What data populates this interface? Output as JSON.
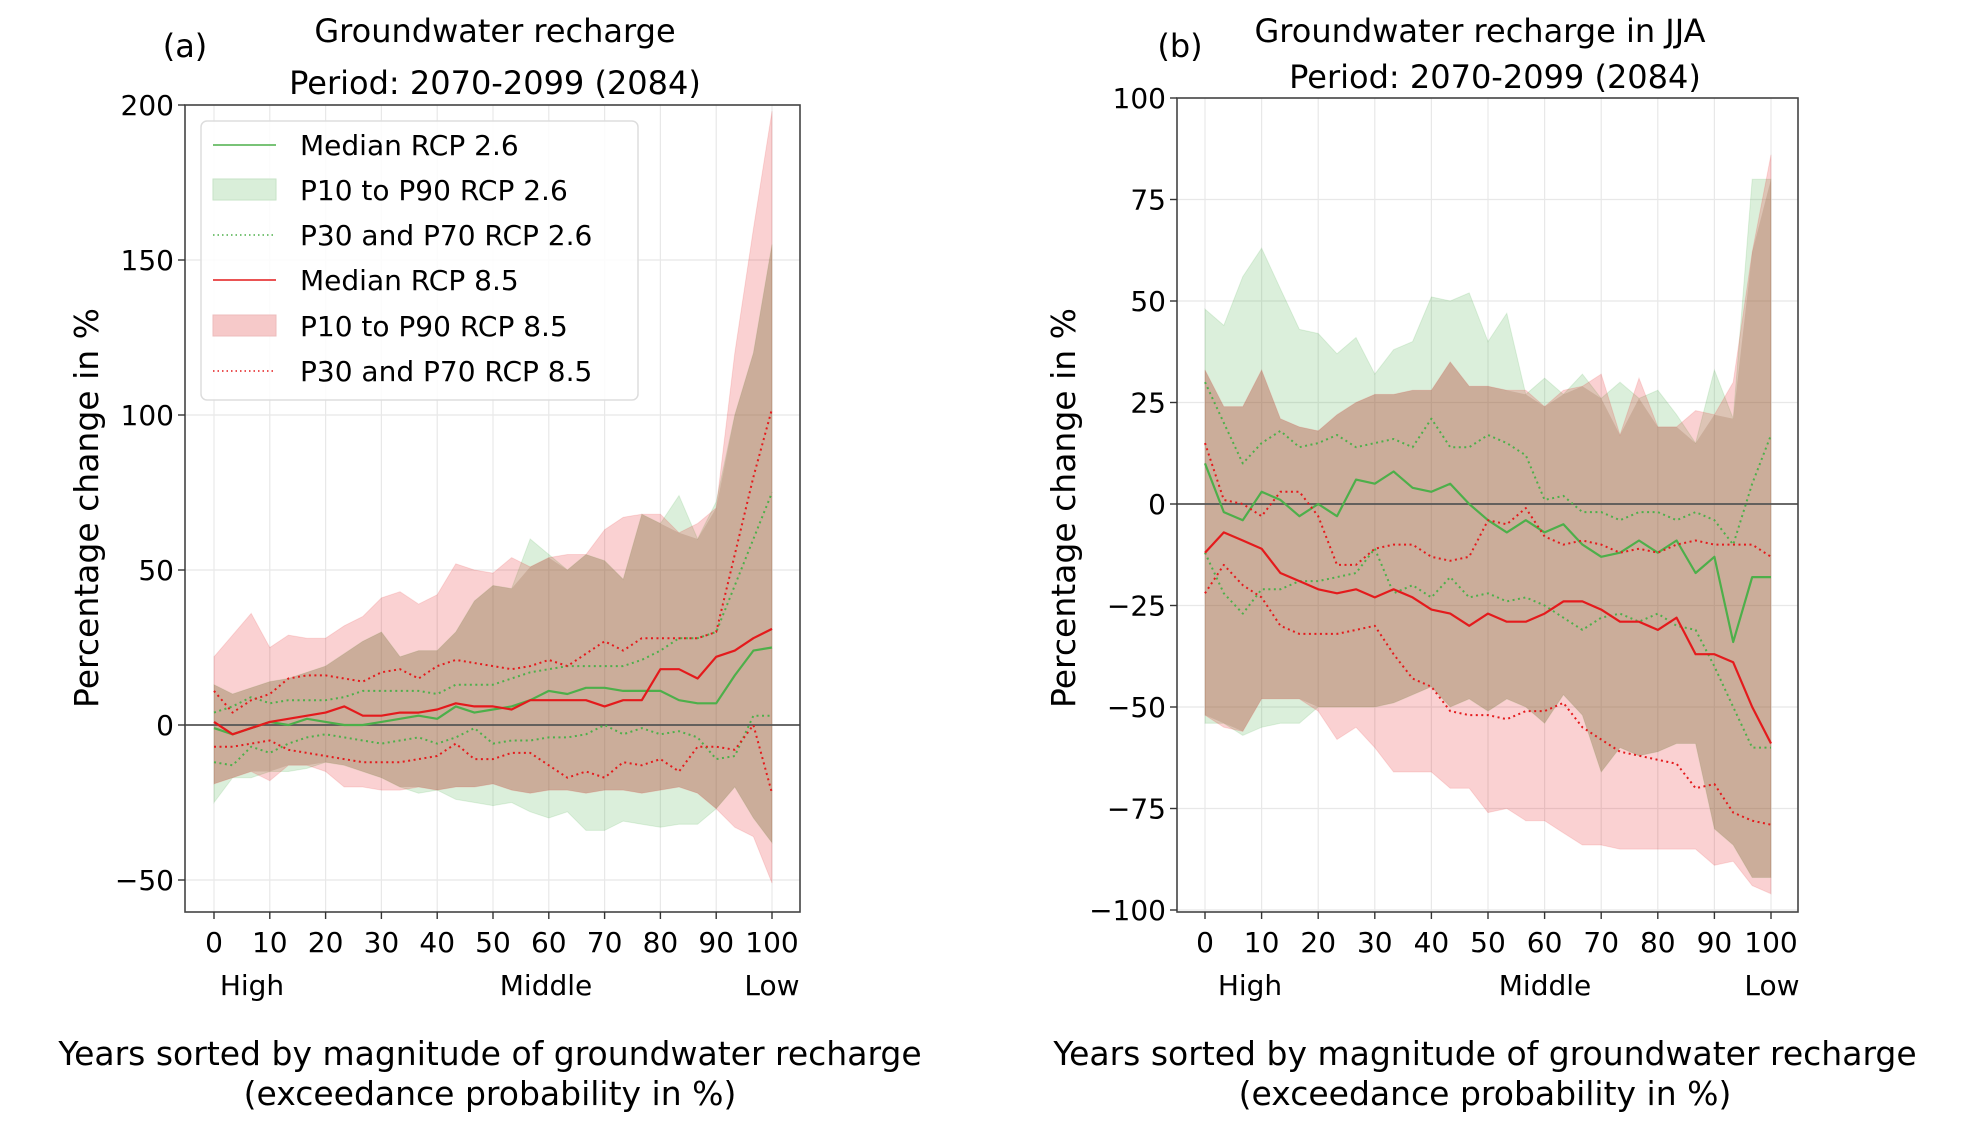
{
  "colors": {
    "rcp26_line": "#4daf4a",
    "rcp26_fill": "#d9eed9",
    "rcp85_line": "#e41a1c",
    "rcp85_fill": "#f6c9c9",
    "overlap_fill": "#d8c0b0",
    "zero_line": "#555555",
    "grid": "#e8e8e8"
  },
  "chart_data": [
    {
      "type": "area",
      "panel_label": "(a)",
      "title": "Groundwater recharge",
      "subtitle": "Period: 2070-2099 (2084)",
      "xlabel": "Years sorted by magnitude of groundwater recharge\n(exceedance probability in %)",
      "xlabel_line1": "Years sorted by magnitude of groundwater recharge",
      "xlabel_line2": "(exceedance probability in %)",
      "ylabel": "Percentage change in %",
      "xlim": [
        0,
        100
      ],
      "ylim": [
        -60,
        200
      ],
      "xticks": [
        0,
        10,
        20,
        30,
        40,
        50,
        60,
        70,
        80,
        90,
        100
      ],
      "yticks": [
        -50,
        0,
        50,
        100,
        150,
        200
      ],
      "ytick_labels": [
        "−50",
        "0",
        "50",
        "100",
        "150",
        "200"
      ],
      "category_labels": {
        "high": "High",
        "middle": "Middle",
        "low": "Low"
      },
      "grid": true,
      "legend": {
        "position": "top-left",
        "entries": [
          "Median RCP 2.6",
          "P10 to P90 RCP 2.6",
          "P30 and P70 RCP 2.6",
          "Median RCP 8.5",
          "P10 to P90 RCP 8.5",
          "P30 and P70 RCP 8.5"
        ]
      },
      "x": [
        0,
        3.33,
        6.67,
        10,
        13.33,
        16.67,
        20,
        23.33,
        26.67,
        30,
        33.33,
        36.67,
        40,
        43.33,
        46.67,
        50,
        53.33,
        56.67,
        60,
        63.33,
        66.67,
        70,
        73.33,
        76.67,
        80,
        83.33,
        86.67,
        90,
        93.33,
        96.67,
        100
      ],
      "series": [
        {
          "name": "Median RCP 2.6",
          "style": "line",
          "color": "rcp26",
          "values": [
            -1,
            -3,
            -1,
            1,
            0,
            2,
            1,
            0,
            0,
            1,
            2,
            3,
            2,
            6,
            4,
            5,
            6,
            8,
            11,
            10,
            12,
            12,
            11,
            11,
            11,
            8,
            7,
            7,
            16,
            24,
            25
          ]
        },
        {
          "name": "P10 RCP 2.6",
          "style": "band-low",
          "color": "rcp26",
          "values": [
            -25,
            -17,
            -17,
            -15,
            -15,
            -14,
            -12,
            -13,
            -15,
            -17,
            -20,
            -22,
            -21,
            -24,
            -25,
            -26,
            -25,
            -28,
            -30,
            -28,
            -34,
            -34,
            -31,
            -32,
            -33,
            -32,
            -32,
            -27,
            -20,
            -30,
            -38
          ]
        },
        {
          "name": "P90 RCP 2.6",
          "style": "band-high",
          "color": "rcp26",
          "values": [
            13,
            10,
            12,
            14,
            15,
            17,
            19,
            23,
            27,
            30,
            22,
            24,
            24,
            30,
            40,
            45,
            44,
            60,
            55,
            50,
            55,
            53,
            47,
            68,
            65,
            74,
            60,
            72,
            100,
            120,
            155
          ]
        },
        {
          "name": "P30 RCP 2.6",
          "style": "dotted",
          "color": "rcp26",
          "values": [
            -12,
            -13,
            -7,
            -9,
            -6,
            -4,
            -3,
            -4,
            -5,
            -6,
            -5,
            -4,
            -6,
            -4,
            -1,
            -6,
            -5,
            -5,
            -4,
            -4,
            -3,
            0,
            -3,
            -1,
            -3,
            -2,
            -4,
            -11,
            -10,
            3,
            3
          ]
        },
        {
          "name": "P70 RCP 2.6",
          "style": "dotted",
          "color": "rcp26",
          "values": [
            4,
            6,
            9,
            7,
            8,
            8,
            8,
            9,
            11,
            11,
            11,
            11,
            10,
            13,
            13,
            13,
            15,
            17,
            18,
            19,
            19,
            19,
            19,
            21,
            24,
            28,
            28,
            30,
            45,
            60,
            75
          ]
        },
        {
          "name": "Median RCP 8.5",
          "style": "line",
          "color": "rcp85",
          "values": [
            1,
            -3,
            -1,
            1,
            2,
            3,
            4,
            6,
            3,
            3,
            4,
            4,
            5,
            7,
            6,
            6,
            5,
            8,
            8,
            8,
            8,
            6,
            8,
            8,
            18,
            18,
            15,
            22,
            24,
            28,
            31
          ]
        },
        {
          "name": "P10 RCP 8.5",
          "style": "band-low",
          "color": "rcp85",
          "values": [
            -19,
            -17,
            -15,
            -18,
            -13,
            -13,
            -15,
            -20,
            -20,
            -21,
            -21,
            -20,
            -21,
            -20,
            -20,
            -19,
            -21,
            -22,
            -21,
            -21,
            -22,
            -21,
            -21,
            -22,
            -21,
            -20,
            -22,
            -27,
            -33,
            -36,
            -51
          ]
        },
        {
          "name": "P90 RCP 8.5",
          "style": "band-high",
          "color": "rcp85",
          "values": [
            22,
            29,
            36,
            25,
            29,
            28,
            28,
            32,
            35,
            41,
            43,
            39,
            42,
            52,
            50,
            49,
            54,
            51,
            54,
            55,
            55,
            63,
            67,
            68,
            68,
            62,
            65,
            70,
            120,
            160,
            198
          ]
        },
        {
          "name": "P30 RCP 8.5",
          "style": "dotted",
          "color": "rcp85",
          "values": [
            -7,
            -7,
            -6,
            -5,
            -8,
            -9,
            -10,
            -11,
            -12,
            -12,
            -12,
            -11,
            -10,
            -6,
            -11,
            -11,
            -9,
            -9,
            -13,
            -17,
            -15,
            -17,
            -12,
            -13,
            -11,
            -15,
            -7,
            -7,
            -8,
            0,
            -22
          ]
        },
        {
          "name": "P70 RCP 8.5",
          "style": "dotted",
          "color": "rcp85",
          "values": [
            11,
            4,
            8,
            10,
            15,
            16,
            16,
            15,
            14,
            17,
            18,
            15,
            19,
            21,
            20,
            19,
            18,
            19,
            21,
            19,
            23,
            27,
            24,
            28,
            28,
            28,
            28,
            30,
            55,
            80,
            102
          ]
        }
      ]
    },
    {
      "type": "area",
      "panel_label": "(b)",
      "title": "Groundwater recharge in JJA",
      "subtitle": "Period: 2070-2099 (2084)",
      "xlabel": "Years sorted by magnitude of groundwater recharge\n(exceedance probability in %)",
      "xlabel_line1": "Years sorted by magnitude of groundwater recharge",
      "xlabel_line2": "(exceedance probability in %)",
      "ylabel": "Percentage change in %",
      "xlim": [
        0,
        100
      ],
      "ylim": [
        -100,
        100
      ],
      "xticks": [
        0,
        10,
        20,
        30,
        40,
        50,
        60,
        70,
        80,
        90,
        100
      ],
      "yticks": [
        -100,
        -75,
        -50,
        -25,
        0,
        25,
        50,
        75,
        100
      ],
      "ytick_labels": [
        "−100",
        "−75",
        "−50",
        "−25",
        "0",
        "25",
        "50",
        "75",
        "100"
      ],
      "category_labels": {
        "high": "High",
        "middle": "Middle",
        "low": "Low"
      },
      "grid": true,
      "legend": null,
      "x": [
        0,
        3.33,
        6.67,
        10,
        13.33,
        16.67,
        20,
        23.33,
        26.67,
        30,
        33.33,
        36.67,
        40,
        43.33,
        46.67,
        50,
        53.33,
        56.67,
        60,
        63.33,
        66.67,
        70,
        73.33,
        76.67,
        80,
        83.33,
        86.67,
        90,
        93.33,
        96.67,
        100
      ],
      "series": [
        {
          "name": "Median RCP 2.6",
          "style": "line",
          "color": "rcp26",
          "values": [
            10,
            -2,
            -4,
            3,
            1,
            -3,
            0,
            -3,
            6,
            5,
            8,
            4,
            3,
            5,
            0,
            -4,
            -7,
            -4,
            -7,
            -5,
            -10,
            -13,
            -12,
            -9,
            -12,
            -9,
            -17,
            -13,
            -34,
            -18,
            -18
          ]
        },
        {
          "name": "P10 RCP 2.6",
          "style": "band-low",
          "color": "rcp26",
          "values": [
            -54,
            -54,
            -57,
            -55,
            -54,
            -54,
            -50,
            -50,
            -50,
            -50,
            -49,
            -47,
            -45,
            -50,
            -48,
            -51,
            -48,
            -50,
            -54,
            -47,
            -52,
            -66,
            -60,
            -62,
            -61,
            -59,
            -59,
            -80,
            -84,
            -92,
            -92
          ]
        },
        {
          "name": "P90 RCP 2.6",
          "style": "band-high",
          "color": "rcp26",
          "values": [
            48,
            44,
            56,
            63,
            53,
            43,
            42,
            37,
            41,
            32,
            38,
            40,
            51,
            50,
            52,
            40,
            47,
            27,
            31,
            27,
            32,
            26,
            30,
            26,
            28,
            22,
            15,
            33,
            21,
            80,
            80
          ]
        },
        {
          "name": "P30 RCP 2.6",
          "style": "dotted",
          "color": "rcp26",
          "values": [
            -12,
            -22,
            -27,
            -21,
            -21,
            -19,
            -19,
            -18,
            -17,
            -11,
            -22,
            -20,
            -23,
            -18,
            -23,
            -22,
            -24,
            -23,
            -25,
            -28,
            -31,
            -28,
            -27,
            -29,
            -27,
            -30,
            -31,
            -40,
            -50,
            -60,
            -60
          ]
        },
        {
          "name": "P70 RCP 2.6",
          "style": "dotted",
          "color": "rcp26",
          "values": [
            30,
            20,
            10,
            15,
            18,
            14,
            15,
            17,
            14,
            15,
            16,
            14,
            21,
            14,
            14,
            17,
            15,
            12,
            1,
            2,
            -2,
            -2,
            -4,
            -2,
            -2,
            -4,
            -2,
            -4,
            -10,
            5,
            17
          ]
        },
        {
          "name": "Median RCP 8.5",
          "style": "line",
          "color": "rcp85",
          "values": [
            -12,
            -7,
            -9,
            -11,
            -17,
            -19,
            -21,
            -22,
            -21,
            -23,
            -21,
            -23,
            -26,
            -27,
            -30,
            -27,
            -29,
            -29,
            -27,
            -24,
            -24,
            -26,
            -29,
            -29,
            -31,
            -28,
            -37,
            -37,
            -39,
            -50,
            -59
          ]
        },
        {
          "name": "P10 RCP 8.5",
          "style": "band-low",
          "color": "rcp85",
          "values": [
            -52,
            -55,
            -56,
            -48,
            -48,
            -48,
            -51,
            -58,
            -55,
            -60,
            -66,
            -66,
            -66,
            -70,
            -70,
            -76,
            -75,
            -78,
            -78,
            -81,
            -84,
            -84,
            -85,
            -85,
            -85,
            -85,
            -85,
            -89,
            -88,
            -94,
            -96
          ]
        },
        {
          "name": "P90 RCP 8.5",
          "style": "band-high",
          "color": "rcp85",
          "values": [
            33,
            24,
            24,
            33,
            21,
            19,
            18,
            22,
            25,
            27,
            27,
            28,
            28,
            35,
            29,
            29,
            28,
            28,
            24,
            28,
            29,
            32,
            17,
            31,
            19,
            19,
            23,
            22,
            30,
            62,
            86
          ]
        },
        {
          "name": "P30 RCP 8.5",
          "style": "dotted",
          "color": "rcp85",
          "values": [
            -22,
            -15,
            -20,
            -23,
            -30,
            -32,
            -32,
            -32,
            -31,
            -30,
            -37,
            -43,
            -45,
            -51,
            -52,
            -52,
            -53,
            -51,
            -51,
            -49,
            -55,
            -58,
            -61,
            -62,
            -63,
            -64,
            -70,
            -69,
            -76,
            -78,
            -79
          ]
        },
        {
          "name": "P70 RCP 8.5",
          "style": "dotted",
          "color": "rcp85",
          "values": [
            15,
            1,
            0,
            -3,
            3,
            3,
            -3,
            -15,
            -15,
            -11,
            -10,
            -10,
            -13,
            -14,
            -13,
            -4,
            -5,
            -1,
            -8,
            -10,
            -9,
            -10,
            -12,
            -11,
            -12,
            -10,
            -9,
            -10,
            -10,
            -10,
            -13
          ]
        }
      ]
    }
  ]
}
